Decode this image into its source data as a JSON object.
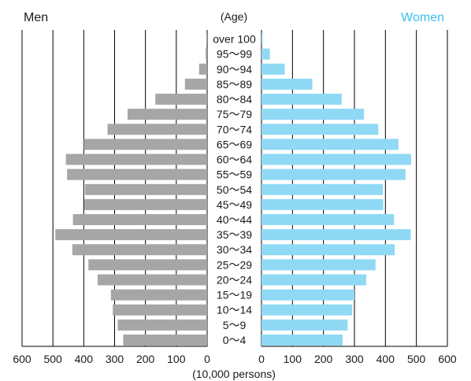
{
  "chart_data": {
    "type": "bar",
    "orientation": "horizontal-population-pyramid",
    "ylabel": "(Age)",
    "xlabel": "(10,000 persons)",
    "xlim": [
      0,
      600
    ],
    "xticks": [
      0,
      100,
      200,
      300,
      400,
      500,
      600
    ],
    "grid": true,
    "categories": [
      "0～4",
      "5～9",
      "10～14",
      "15～19",
      "20～24",
      "25～29",
      "30～34",
      "35～39",
      "40～44",
      "45～49",
      "50～54",
      "55～59",
      "60～64",
      "65～69",
      "70～74",
      "75～79",
      "80～84",
      "85～89",
      "90～94",
      "95～99",
      "over 100"
    ],
    "series": [
      {
        "name": "Men",
        "side": "left",
        "color": "#a6a6a6",
        "values": [
          272,
          290,
          306,
          312,
          355,
          385,
          437,
          492,
          435,
          398,
          396,
          454,
          458,
          400,
          323,
          258,
          168,
          72,
          26,
          5,
          0.5
        ]
      },
      {
        "name": "Women",
        "side": "right",
        "color": "#8fd9f5",
        "values": [
          262,
          278,
          293,
          300,
          338,
          368,
          430,
          482,
          428,
          393,
          392,
          465,
          483,
          442,
          377,
          331,
          259,
          164,
          75,
          27,
          4
        ]
      }
    ]
  }
}
